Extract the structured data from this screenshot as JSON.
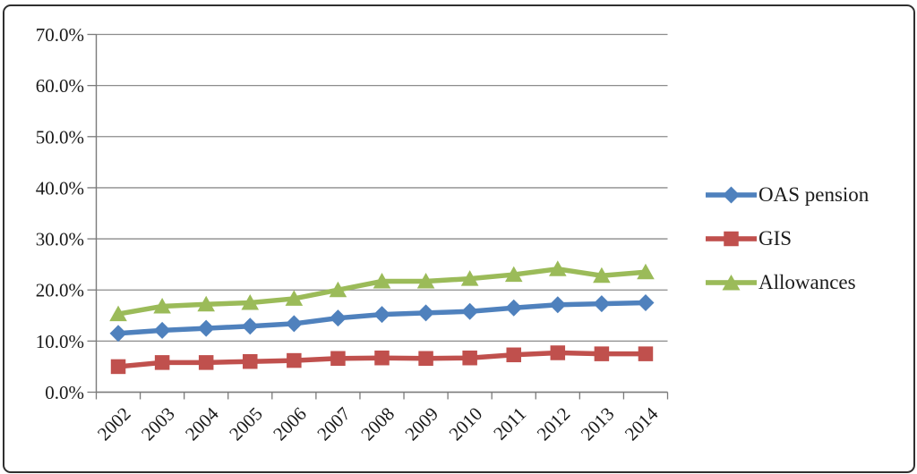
{
  "figure": {
    "background": "#ffffff",
    "border_color": "#2f2f2f"
  },
  "chart_data": {
    "type": "line",
    "title": "",
    "xlabel": "",
    "ylabel": "",
    "categories": [
      "2002",
      "2003",
      "2004",
      "2005",
      "2006",
      "2007",
      "2008",
      "2009",
      "2010",
      "2011",
      "2012",
      "2013",
      "2014"
    ],
    "series": [
      {
        "name": "OAS pension",
        "color": "#4F81BD",
        "marker": "diamond",
        "values": [
          11.5,
          12.1,
          12.5,
          12.9,
          13.4,
          14.5,
          15.2,
          15.5,
          15.8,
          16.5,
          17.1,
          17.3,
          17.5
        ]
      },
      {
        "name": "GIS",
        "color": "#C0504D",
        "marker": "square",
        "values": [
          5.0,
          5.8,
          5.8,
          6.0,
          6.2,
          6.6,
          6.7,
          6.6,
          6.7,
          7.3,
          7.7,
          7.5,
          7.5
        ]
      },
      {
        "name": "Allowances",
        "color": "#9BBB59",
        "marker": "triangle",
        "values": [
          15.3,
          16.8,
          17.2,
          17.5,
          18.3,
          20.0,
          21.7,
          21.7,
          22.2,
          23.0,
          24.1,
          22.8,
          23.5
        ]
      }
    ],
    "ylim": [
      0,
      70
    ],
    "y_tick_step": 10,
    "y_tick_labels": [
      "0.0%",
      "10.0%",
      "20.0%",
      "30.0%",
      "40.0%",
      "50.0%",
      "60.0%",
      "70.0%"
    ],
    "unit": "percent",
    "grid": "horizontal",
    "legend_position": "right",
    "gridline_color": "#8c8c8c",
    "axis_color": "#7a7a7a",
    "text_color": "#1a1a1a"
  }
}
